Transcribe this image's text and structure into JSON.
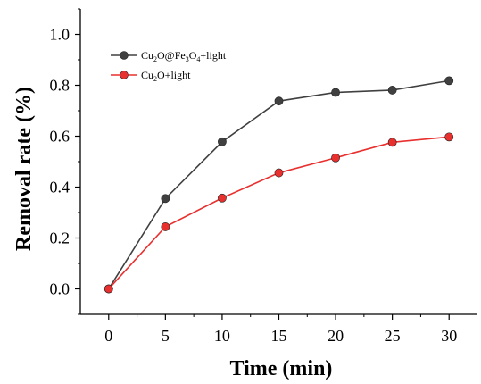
{
  "chart_data": {
    "type": "line",
    "title": "",
    "xlabel": "Time (min)",
    "ylabel": "Removal rate (%)",
    "x": [
      0,
      5,
      10,
      15,
      20,
      25,
      30
    ],
    "xlim": [
      -2.5,
      32.5
    ],
    "ylim": [
      -0.1,
      1.1
    ],
    "x_ticks": [
      "0",
      "5",
      "10",
      "15",
      "20",
      "25",
      "30"
    ],
    "y_ticks": [
      "0.0",
      "0.2",
      "0.4",
      "0.6",
      "0.8",
      "1.0"
    ],
    "legend_position": "top-left",
    "grid": false,
    "series": [
      {
        "name": "Cu2O@Fe3O4+light",
        "color": "#404040",
        "values": [
          0.0,
          0.355,
          0.578,
          0.738,
          0.772,
          0.781,
          0.818
        ]
      },
      {
        "name": "Cu2O+light",
        "color": "#e8302f",
        "values": [
          0.0,
          0.244,
          0.357,
          0.456,
          0.515,
          0.576,
          0.597
        ]
      }
    ]
  }
}
